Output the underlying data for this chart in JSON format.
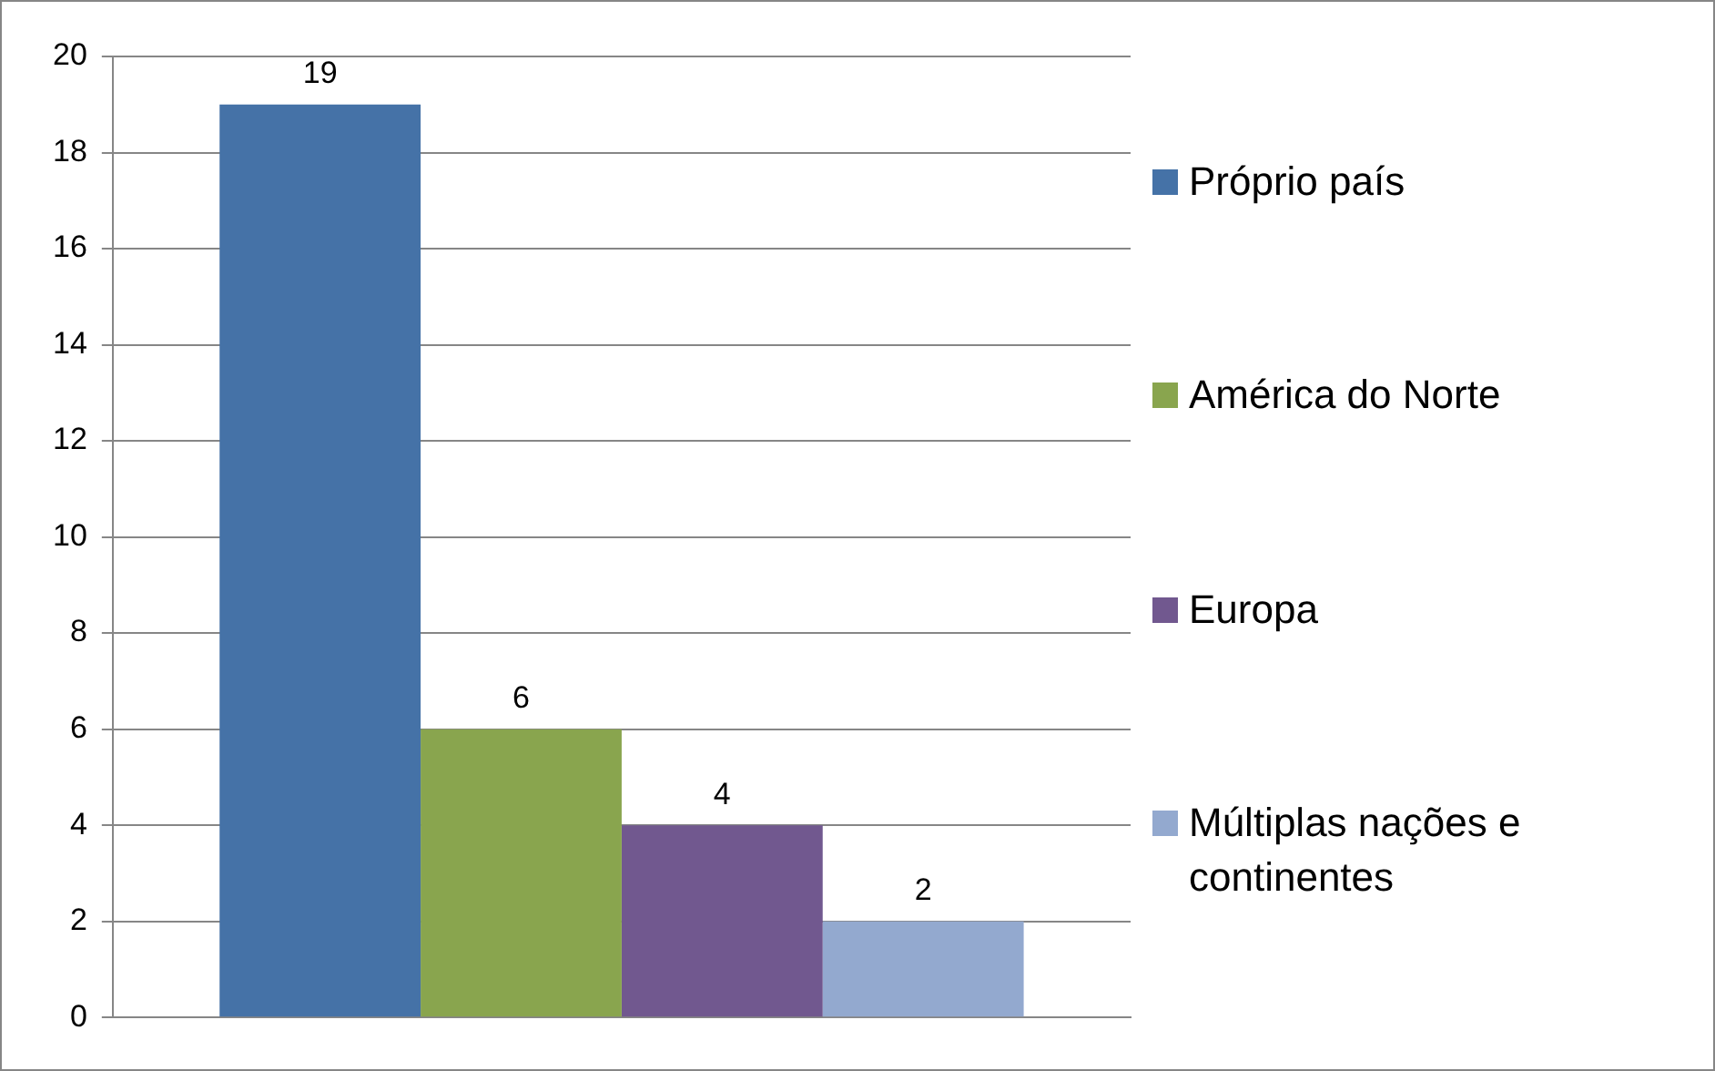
{
  "chart_data": {
    "type": "bar",
    "categories": [
      null
    ],
    "series": [
      {
        "name": "Próprio país",
        "color": "#4572a7",
        "values": [
          19
        ]
      },
      {
        "name": "América do Norte",
        "color": "#89a54e",
        "values": [
          6
        ]
      },
      {
        "name": "Europa",
        "color": "#71588f",
        "values": [
          4
        ]
      },
      {
        "name": "Múltiplas nações e continentes",
        "color": "#93a9cf",
        "values": [
          2
        ]
      }
    ],
    "ylim": [
      0,
      20
    ],
    "yticks": [
      0,
      2,
      4,
      6,
      8,
      10,
      12,
      14,
      16,
      18,
      20
    ],
    "grid": "y",
    "legend": "right",
    "data_labels": true
  }
}
